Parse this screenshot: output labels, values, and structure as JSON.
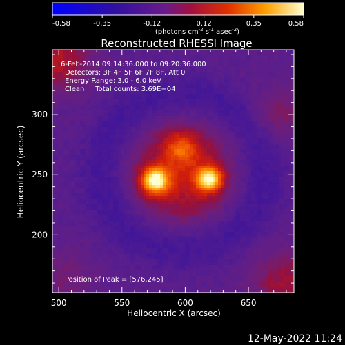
{
  "colorbar": {
    "min": -0.58,
    "max": 0.58,
    "ticks": [
      "-0.58",
      "-0.35",
      "-0.12",
      "0.12",
      "0.35",
      "0.58"
    ],
    "unit_main": "(photons cm",
    "unit_sup1": "-2",
    "unit_mid1": " s",
    "unit_sup2": "-1",
    "unit_mid2": " asec",
    "unit_sup3": "-2",
    "unit_end": ")"
  },
  "chart_data": {
    "type": "heatmap",
    "title": "Reconstructed RHESSI Image",
    "xlabel": "Heliocentric X (arcsec)",
    "ylabel": "Heliocentric Y (arcsec)",
    "xlim": [
      495,
      686
    ],
    "ylim": [
      152,
      354
    ],
    "x_ticks": [
      500,
      550,
      600,
      650
    ],
    "y_ticks": [
      200,
      250,
      300
    ],
    "annotations": [
      "6-Feb-2014 09:14:36.000 to 09:20:36.000",
      "Detectors: 3F 4F 5F 6F 7F 8F, Att 0",
      "Energy Range: 3.0 - 6.0 keV",
      "Clean     Total counts: 3.69E+04"
    ],
    "peak_text": "Position of Peak = [576,245]",
    "sources": [
      {
        "x": 576,
        "y": 245,
        "peak": 0.58
      },
      {
        "x": 619,
        "y": 246,
        "peak": 0.52
      },
      {
        "x": 597,
        "y": 272,
        "peak": 0.22
      }
    ],
    "value_range": [
      -0.58,
      0.58
    ]
  },
  "timestamp": "12-May-2022 11:24"
}
